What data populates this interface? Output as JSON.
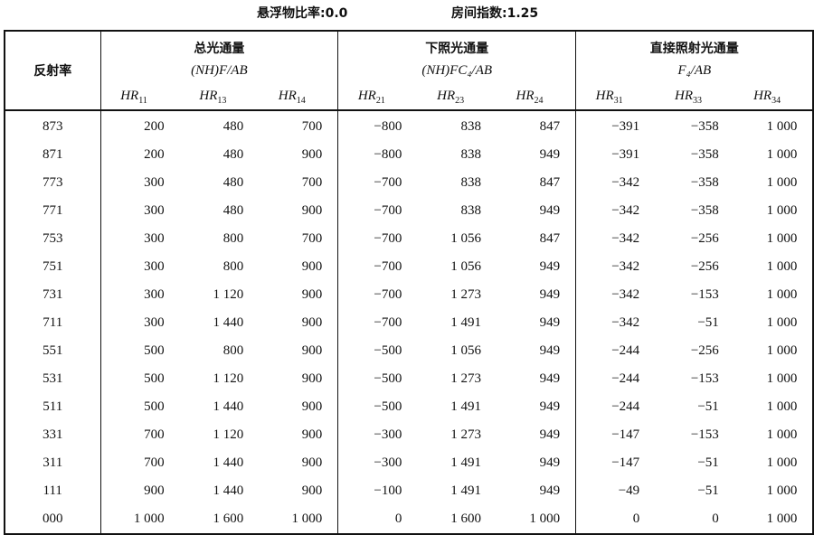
{
  "caption": {
    "suspension_ratio": "悬浮物比率:0.0",
    "room_index": "房间指数:1.25"
  },
  "table": {
    "row_header": "反射率",
    "groups": [
      {
        "title": "总光通量",
        "formula": "(NH)F/AB",
        "columns": [
          {
            "base": "HR",
            "sub": "11"
          },
          {
            "base": "HR",
            "sub": "13"
          },
          {
            "base": "HR",
            "sub": "14"
          }
        ]
      },
      {
        "title": "下照光通量",
        "formula": "(NH)FC₄/AB",
        "columns": [
          {
            "base": "HR",
            "sub": "21"
          },
          {
            "base": "HR",
            "sub": "23"
          },
          {
            "base": "HR",
            "sub": "24"
          }
        ]
      },
      {
        "title": "直接照射光通量",
        "formula": "F₄/AB",
        "columns": [
          {
            "base": "HR",
            "sub": "31"
          },
          {
            "base": "HR",
            "sub": "33"
          },
          {
            "base": "HR",
            "sub": "34"
          }
        ]
      }
    ],
    "rows": [
      [
        "873",
        "200",
        "480",
        "700",
        "−800",
        "838",
        "847",
        "−391",
        "−358",
        "1 000"
      ],
      [
        "871",
        "200",
        "480",
        "900",
        "−800",
        "838",
        "949",
        "−391",
        "−358",
        "1 000"
      ],
      [
        "773",
        "300",
        "480",
        "700",
        "−700",
        "838",
        "847",
        "−342",
        "−358",
        "1 000"
      ],
      [
        "771",
        "300",
        "480",
        "900",
        "−700",
        "838",
        "949",
        "−342",
        "−358",
        "1 000"
      ],
      [
        "753",
        "300",
        "800",
        "700",
        "−700",
        "1 056",
        "847",
        "−342",
        "−256",
        "1 000"
      ],
      [
        "751",
        "300",
        "800",
        "900",
        "−700",
        "1 056",
        "949",
        "−342",
        "−256",
        "1 000"
      ],
      [
        "731",
        "300",
        "1 120",
        "900",
        "−700",
        "1 273",
        "949",
        "−342",
        "−153",
        "1 000"
      ],
      [
        "711",
        "300",
        "1 440",
        "900",
        "−700",
        "1 491",
        "949",
        "−342",
        "−51",
        "1 000"
      ],
      [
        "551",
        "500",
        "800",
        "900",
        "−500",
        "1 056",
        "949",
        "−244",
        "−256",
        "1 000"
      ],
      [
        "531",
        "500",
        "1 120",
        "900",
        "−500",
        "1 273",
        "949",
        "−244",
        "−153",
        "1 000"
      ],
      [
        "511",
        "500",
        "1 440",
        "900",
        "−500",
        "1 491",
        "949",
        "−244",
        "−51",
        "1 000"
      ],
      [
        "331",
        "700",
        "1 120",
        "900",
        "−300",
        "1 273",
        "949",
        "−147",
        "−153",
        "1 000"
      ],
      [
        "311",
        "700",
        "1 440",
        "900",
        "−300",
        "1 491",
        "949",
        "−147",
        "−51",
        "1 000"
      ],
      [
        "111",
        "900",
        "1 440",
        "900",
        "−100",
        "1 491",
        "949",
        "−49",
        "−51",
        "1 000"
      ],
      [
        "000",
        "1 000",
        "1 600",
        "1 000",
        "0",
        "1 600",
        "1 000",
        "0",
        "0",
        "1 000"
      ]
    ]
  }
}
